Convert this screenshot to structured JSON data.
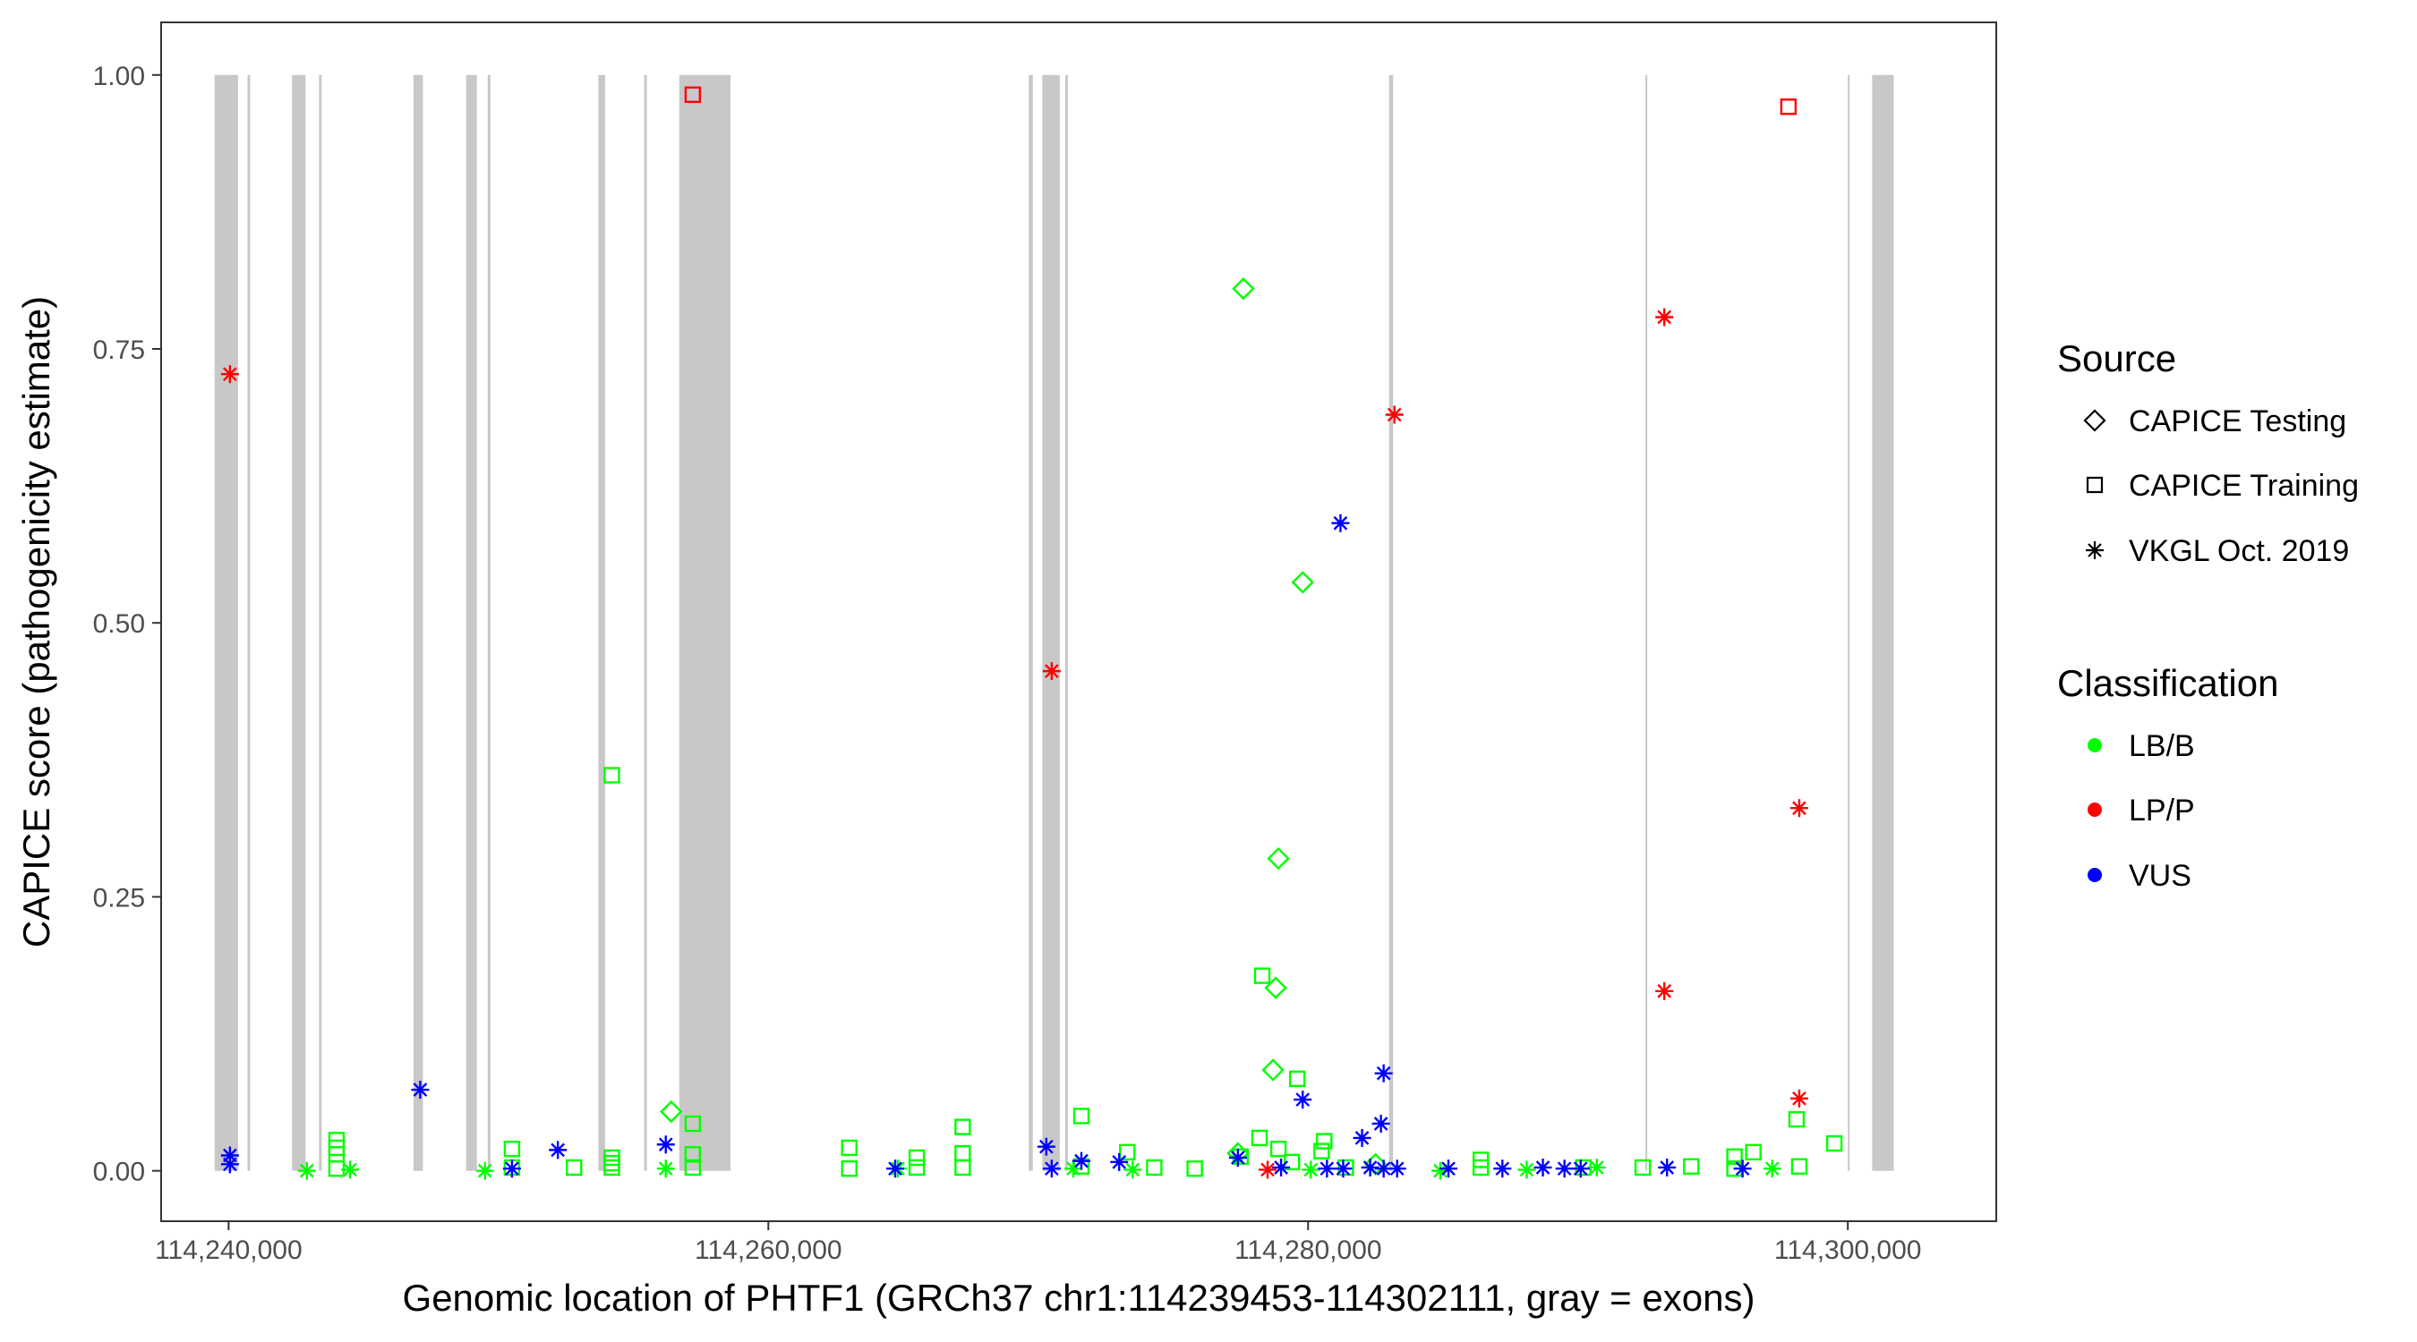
{
  "chart_data": {
    "type": "scatter",
    "title": "",
    "xlabel": "Genomic location of PHTF1 (GRCh37 chr1:114239453-114302111, gray = exons)",
    "ylabel": "CAPICE score (pathogenicity estimate)",
    "xlim": [
      114237500,
      114305500
    ],
    "ylim": [
      -0.046,
      1.048
    ],
    "x_ticks": [
      114240000,
      114260000,
      114280000,
      114300000
    ],
    "x_tick_labels": [
      "114,240,000",
      "114,260,000",
      "114,280,000",
      "114,300,000"
    ],
    "y_ticks": [
      0,
      0.25,
      0.5,
      0.75,
      1.0
    ],
    "y_tick_labels": [
      "0.00",
      "0.25",
      "0.50",
      "0.75",
      "1.00"
    ],
    "grid": false,
    "exon_color": "#c8c8c8",
    "exons": [
      [
        114239480,
        114240350
      ],
      [
        114240700,
        114240800
      ],
      [
        114242350,
        114242850
      ],
      [
        114243350,
        114243450
      ],
      [
        114246850,
        114247200
      ],
      [
        114248800,
        114249200
      ],
      [
        114249600,
        114249700
      ],
      [
        114253700,
        114253950
      ],
      [
        114255400,
        114255500
      ],
      [
        114256700,
        114258600
      ],
      [
        114269650,
        114269800
      ],
      [
        114270150,
        114270800
      ],
      [
        114271000,
        114271100
      ],
      [
        114283000,
        114283150
      ],
      [
        114292500,
        114292550
      ],
      [
        114300000,
        114300050
      ],
      [
        114300900,
        114301700
      ]
    ],
    "legend": {
      "source_title": "Source",
      "source_items": [
        {
          "label": "CAPICE Testing",
          "shape": "diamond"
        },
        {
          "label": "CAPICE Training",
          "shape": "square"
        },
        {
          "label": "VKGL Oct. 2019",
          "shape": "asterisk"
        }
      ],
      "class_title": "Classification",
      "class_items": [
        {
          "label": "LB/B",
          "color": "#00ff00"
        },
        {
          "label": "LP/P",
          "color": "#ff0000"
        },
        {
          "label": "VUS",
          "color": "#0000ff"
        }
      ],
      "placement": "right"
    },
    "series": [
      {
        "name": "CAPICE Testing",
        "classification": "LB/B",
        "shape": "diamond",
        "color": "#00ff00",
        "points": [
          [
            114277600,
            0.805
          ],
          [
            114279800,
            0.537
          ],
          [
            114278900,
            0.285
          ],
          [
            114278800,
            0.167
          ],
          [
            114278700,
            0.092
          ],
          [
            114256400,
            0.054
          ],
          [
            114277400,
            0.016
          ],
          [
            114282500,
            0.006
          ]
        ]
      },
      {
        "name": "CAPICE Training",
        "classification": "LB/B",
        "shape": "square",
        "color": "#00ff00",
        "points": [
          [
            114254200,
            0.361
          ],
          [
            114278300,
            0.178
          ],
          [
            114279600,
            0.084
          ],
          [
            114278200,
            0.03
          ],
          [
            114280600,
            0.027
          ],
          [
            114280500,
            0.018
          ],
          [
            114244000,
            0.028
          ],
          [
            114244000,
            0.021
          ],
          [
            114244000,
            0.015
          ],
          [
            114244000,
            0.002
          ],
          [
            114250500,
            0.02
          ],
          [
            114250500,
            0.003
          ],
          [
            114252800,
            0.003
          ],
          [
            114254200,
            0.012
          ],
          [
            114254200,
            0.007
          ],
          [
            114254200,
            0.003
          ],
          [
            114257200,
            0.043
          ],
          [
            114257200,
            0.015
          ],
          [
            114257200,
            0.003
          ],
          [
            114263000,
            0.021
          ],
          [
            114263000,
            0.002
          ],
          [
            114265500,
            0.012
          ],
          [
            114265500,
            0.003
          ],
          [
            114267200,
            0.04
          ],
          [
            114267200,
            0.016
          ],
          [
            114267200,
            0.003
          ],
          [
            114271600,
            0.05
          ],
          [
            114271600,
            0.004
          ],
          [
            114273300,
            0.017
          ],
          [
            114274300,
            0.003
          ],
          [
            114275800,
            0.002
          ],
          [
            114277500,
            0.013
          ],
          [
            114278900,
            0.02
          ],
          [
            114279400,
            0.008
          ],
          [
            114281400,
            0.003
          ],
          [
            114286400,
            0.01
          ],
          [
            114286400,
            0.003
          ],
          [
            114290200,
            0.003
          ],
          [
            114292400,
            0.003
          ],
          [
            114294200,
            0.004
          ],
          [
            114295800,
            0.013
          ],
          [
            114295800,
            0.002
          ],
          [
            114296500,
            0.017
          ],
          [
            114298100,
            0.047
          ],
          [
            114298200,
            0.004
          ],
          [
            114299500,
            0.025
          ]
        ]
      },
      {
        "name": "CAPICE Training",
        "classification": "LP/P",
        "shape": "square",
        "color": "#ff0000",
        "points": [
          [
            114257200,
            0.982
          ],
          [
            114297800,
            0.971
          ]
        ]
      },
      {
        "name": "VKGL Oct. 2019",
        "classification": "LB/B",
        "shape": "asterisk",
        "color": "#00ff00",
        "points": [
          [
            114242900,
            0.0
          ],
          [
            114244500,
            0.001
          ],
          [
            114249500,
            0.0
          ],
          [
            114256200,
            0.002
          ],
          [
            114264800,
            0.002
          ],
          [
            114271300,
            0.002
          ],
          [
            114273500,
            0.001
          ],
          [
            114280100,
            0.001
          ],
          [
            114284900,
            0.0
          ],
          [
            114288100,
            0.001
          ],
          [
            114290700,
            0.003
          ],
          [
            114297200,
            0.002
          ]
        ]
      },
      {
        "name": "VKGL Oct. 2019",
        "classification": "LP/P",
        "shape": "asterisk",
        "color": "#ff0000",
        "points": [
          [
            114240050,
            0.727
          ],
          [
            114283200,
            0.69
          ],
          [
            114270500,
            0.456
          ],
          [
            114293200,
            0.779
          ],
          [
            114298200,
            0.331
          ],
          [
            114293200,
            0.164
          ],
          [
            114298200,
            0.066
          ],
          [
            114278500,
            0.001
          ]
        ]
      },
      {
        "name": "VKGL Oct. 2019",
        "classification": "VUS",
        "shape": "asterisk",
        "color": "#0000ff",
        "points": [
          [
            114281200,
            0.591
          ],
          [
            114247100,
            0.074
          ],
          [
            114282800,
            0.089
          ],
          [
            114279800,
            0.065
          ],
          [
            114282700,
            0.043
          ],
          [
            114282000,
            0.03
          ],
          [
            114240050,
            0.014
          ],
          [
            114240050,
            0.006
          ],
          [
            114252200,
            0.019
          ],
          [
            114256200,
            0.024
          ],
          [
            114270300,
            0.022
          ],
          [
            114271600,
            0.009
          ],
          [
            114270500,
            0.002
          ],
          [
            114273000,
            0.008
          ],
          [
            114277400,
            0.012
          ],
          [
            114279000,
            0.003
          ],
          [
            114280700,
            0.002
          ],
          [
            114281300,
            0.002
          ],
          [
            114282300,
            0.003
          ],
          [
            114282800,
            0.002
          ],
          [
            114283300,
            0.002
          ],
          [
            114285200,
            0.002
          ],
          [
            114287200,
            0.002
          ],
          [
            114289500,
            0.002
          ],
          [
            114293300,
            0.003
          ],
          [
            114296100,
            0.002
          ],
          [
            114250500,
            0.002
          ],
          [
            114264700,
            0.002
          ],
          [
            114288700,
            0.003
          ],
          [
            114290100,
            0.002
          ]
        ]
      }
    ]
  }
}
